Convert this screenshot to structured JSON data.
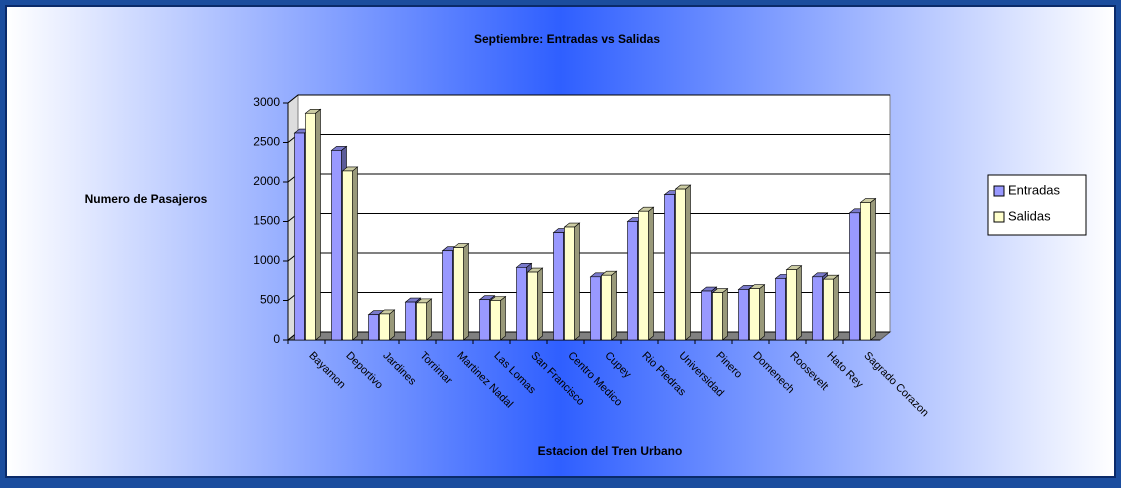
{
  "chart_data": {
    "type": "bar3d",
    "title": "Septiembre: Entradas vs Salidas",
    "x_label": "Estacion del Tren Urbano",
    "y_label": "Numero de Pasajeros",
    "categories": [
      "Bayamon",
      "Deportivo",
      "Jardines",
      "Torrimar",
      "Martinez Nadal",
      "Las Lomas",
      "San Francisco",
      "Centro Medico",
      "Cupey",
      "Rio Piedras",
      "Universidad",
      "Pinero",
      "Domenech",
      "Roosevelt",
      "Hato Rey",
      "Sagrado Corazon"
    ],
    "series": [
      {
        "name": "Entradas",
        "color": "#9999ff",
        "values": [
          2620,
          2400,
          320,
          480,
          1130,
          510,
          920,
          1360,
          800,
          1500,
          1840,
          620,
          640,
          780,
          800,
          1610
        ]
      },
      {
        "name": "Salidas",
        "color": "#ffffcc",
        "values": [
          2870,
          2140,
          330,
          470,
          1170,
          500,
          860,
          1430,
          820,
          1630,
          1910,
          600,
          650,
          890,
          770,
          1740
        ]
      }
    ],
    "ylim": [
      0,
      3000
    ],
    "yticks": [
      0,
      500,
      1000,
      1500,
      2000,
      2500,
      3000
    ],
    "grid": true,
    "legend": "right"
  }
}
